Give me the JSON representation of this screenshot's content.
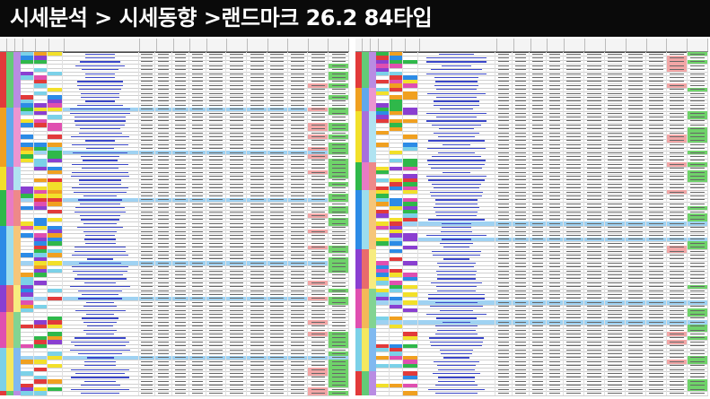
{
  "header": {
    "title": "시세분석 > 시세동향 >랜드마크 26.2 84타입"
  },
  "colors": {
    "title_bg": "#0a0a0a",
    "title_fg": "#ffffff",
    "name_link": "#3a46c8",
    "band_colors": [
      "#e23a3a",
      "#f0a020",
      "#f2e02a",
      "#2fb84a",
      "#2c8be6",
      "#8a3fd1",
      "#e04fb0",
      "#7bd1e8"
    ]
  }
}
